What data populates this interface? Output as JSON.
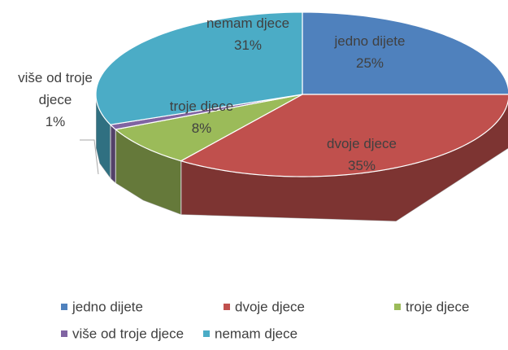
{
  "chart_data": {
    "type": "pie3d",
    "categories": [
      "jedno dijete",
      "dvoje djece",
      "troje djece",
      "više od troje djece",
      "nemam djece"
    ],
    "values": [
      25,
      35,
      8,
      1,
      31
    ],
    "value_labels": [
      "25%",
      "35%",
      "8%",
      "1%",
      "31%"
    ],
    "colors": [
      "#4f81bd",
      "#c0504d",
      "#9bbb59",
      "#8064a2",
      "#4bacc6"
    ],
    "legend": "bottom"
  }
}
